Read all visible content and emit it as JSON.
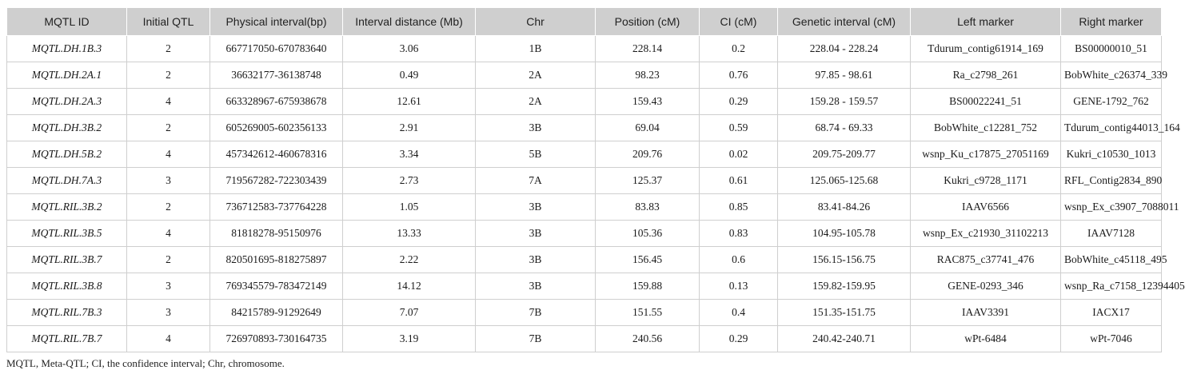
{
  "table": {
    "headers": [
      "MQTL ID",
      "Initial QTL",
      "Physical interval(bp)",
      "Interval distance (Mb)",
      "Chr",
      "Position (cM)",
      "CI (cM)",
      "Genetic interval (cM)",
      "Left marker",
      "Right marker"
    ],
    "rows": [
      [
        "MQTL.DH.1B.3",
        "2",
        "667717050-670783640",
        "3.06",
        "1B",
        "228.14",
        "0.2",
        "228.04 - 228.24",
        "Tdurum_contig61914_169",
        "BS00000010_51"
      ],
      [
        "MQTL.DH.2A.1",
        "2",
        "36632177-36138748",
        "0.49",
        "2A",
        "98.23",
        "0.76",
        "97.85 - 98.61",
        "Ra_c2798_261",
        "BobWhite_c26374_339"
      ],
      [
        "MQTL.DH.2A.3",
        "4",
        "663328967-675938678",
        "12.61",
        "2A",
        "159.43",
        "0.29",
        "159.28 - 159.57",
        "BS00022241_51",
        "GENE-1792_762"
      ],
      [
        "MQTL.DH.3B.2",
        "2",
        "605269005-602356133",
        "2.91",
        "3B",
        "69.04",
        "0.59",
        "68.74 - 69.33",
        "BobWhite_c12281_752",
        "Tdurum_contig44013_164"
      ],
      [
        "MQTL.DH.5B.2",
        "4",
        "457342612-460678316",
        "3.34",
        "5B",
        "209.76",
        "0.02",
        "209.75-209.77",
        "wsnp_Ku_c17875_27051169",
        "Kukri_c10530_1013"
      ],
      [
        "MQTL.DH.7A.3",
        "3",
        "719567282-722303439",
        "2.73",
        "7A",
        "125.37",
        "0.61",
        "125.065-125.68",
        "Kukri_c9728_1171",
        "RFL_Contig2834_890"
      ],
      [
        "MQTL.RIL.3B.2",
        "2",
        "736712583-737764228",
        "1.05",
        "3B",
        "83.83",
        "0.85",
        "83.41-84.26",
        "IAAV6566",
        "wsnp_Ex_c3907_7088011"
      ],
      [
        "MQTL.RIL.3B.5",
        "4",
        "81818278-95150976",
        "13.33",
        "3B",
        "105.36",
        "0.83",
        "104.95-105.78",
        "wsnp_Ex_c21930_31102213",
        "IAAV7128"
      ],
      [
        "MQTL.RIL.3B.7",
        "2",
        "820501695-818275897",
        "2.22",
        "3B",
        "156.45",
        "0.6",
        "156.15-156.75",
        "RAC875_c37741_476",
        "BobWhite_c45118_495"
      ],
      [
        "MQTL.RIL.3B.8",
        "3",
        "769345579-783472149",
        "14.12",
        "3B",
        "159.88",
        "0.13",
        "159.82-159.95",
        "GENE-0293_346",
        "wsnp_Ra_c7158_12394405"
      ],
      [
        "MQTL.RIL.7B.3",
        "3",
        "84215789-91292649",
        "7.07",
        "7B",
        "151.55",
        "0.4",
        "151.35-151.75",
        "IAAV3391",
        "IACX17"
      ],
      [
        "MQTL.RIL.7B.7",
        "4",
        "726970893-730164735",
        "3.19",
        "7B",
        "240.56",
        "0.29",
        "240.42-240.71",
        "wPt-6484",
        "wPt-7046"
      ]
    ]
  },
  "footnote": "MQTL, Meta-QTL; CI, the confidence interval; Chr, chromosome."
}
